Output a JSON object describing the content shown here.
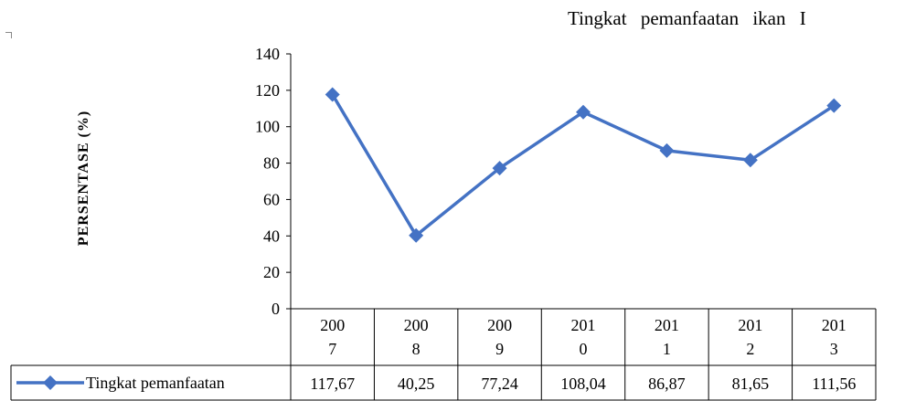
{
  "page": {
    "top_text": "Tingkat pemanfaatan ikan I"
  },
  "chart_data": {
    "type": "line",
    "ylabel": "PERSENTASE (%)",
    "xlabel": "",
    "ylim": [
      0,
      140
    ],
    "yticks": [
      0,
      20,
      40,
      60,
      80,
      100,
      120,
      140
    ],
    "categories": [
      [
        "200",
        "7"
      ],
      [
        "200",
        "8"
      ],
      [
        "200",
        "9"
      ],
      [
        "201",
        "0"
      ],
      [
        "201",
        "1"
      ],
      [
        "201",
        "2"
      ],
      [
        "201",
        "3"
      ]
    ],
    "series": [
      {
        "name": "Tingkat pemanfaatan",
        "values": [
          117.67,
          40.25,
          77.24,
          108.04,
          86.87,
          81.65,
          111.56
        ],
        "value_labels": [
          "117,67",
          "40,25",
          "77,24",
          "108,04",
          "86,87",
          "81,65",
          "111,56"
        ],
        "color": "#4472c4",
        "marker": "diamond"
      }
    ],
    "grid": false,
    "legend": "data-table-bottom"
  }
}
